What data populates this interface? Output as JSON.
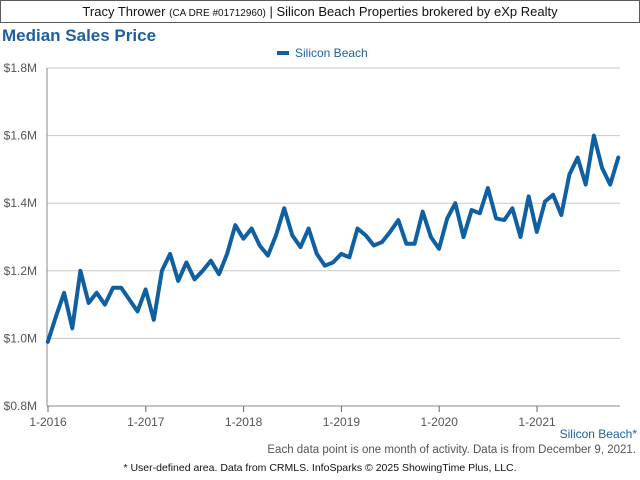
{
  "header": {
    "agent_name": "Tracy Thrower",
    "license": "(CA DRE #01712960)",
    "rest": "| Silicon Beach Properties brokered by eXp Realty"
  },
  "title": "Median Sales Price",
  "note": "Each data point is one month of activity. Data is from December 9, 2021.",
  "footer": "* User-defined area. Data from CRMLS. InfoSparks © 2025 ShowingTime Plus, LLC.",
  "area_label": "Silicon Beach*",
  "colors": {
    "series": "#0f5fa3",
    "title": "#1f5fa0",
    "grid": "#c8c8c8"
  },
  "chart_data": {
    "type": "line",
    "title": "Median Sales Price",
    "xlabel": "",
    "ylabel": "",
    "ylim": [
      800000,
      1800000
    ],
    "y_ticks": [
      800000,
      1000000,
      1200000,
      1400000,
      1600000,
      1800000
    ],
    "y_tick_labels": [
      "$0.8M",
      "$1.0M",
      "$1.2M",
      "$1.4M",
      "$1.6M",
      "$1.8M"
    ],
    "x_tick_labels": [
      "1-2016",
      "1-2017",
      "1-2018",
      "1-2019",
      "1-2020",
      "1-2021"
    ],
    "x_tick_months": [
      0,
      12,
      24,
      36,
      48,
      60
    ],
    "grid": true,
    "legend": "top-center",
    "series": [
      {
        "name": "Silicon Beach",
        "start_month": "1-2016",
        "values": [
          990000,
          1065000,
          1135000,
          1030000,
          1200000,
          1105000,
          1135000,
          1100000,
          1150000,
          1150000,
          1115000,
          1080000,
          1145000,
          1055000,
          1200000,
          1250000,
          1170000,
          1225000,
          1175000,
          1200000,
          1230000,
          1190000,
          1250000,
          1335000,
          1295000,
          1325000,
          1275000,
          1245000,
          1305000,
          1385000,
          1305000,
          1270000,
          1325000,
          1250000,
          1215000,
          1225000,
          1250000,
          1240000,
          1325000,
          1305000,
          1275000,
          1285000,
          1315000,
          1350000,
          1280000,
          1280000,
          1375000,
          1300000,
          1265000,
          1355000,
          1400000,
          1300000,
          1380000,
          1370000,
          1445000,
          1355000,
          1350000,
          1385000,
          1300000,
          1420000,
          1315000,
          1405000,
          1425000,
          1365000,
          1485000,
          1535000,
          1455000,
          1600000,
          1505000,
          1455000,
          1535000
        ]
      }
    ]
  }
}
